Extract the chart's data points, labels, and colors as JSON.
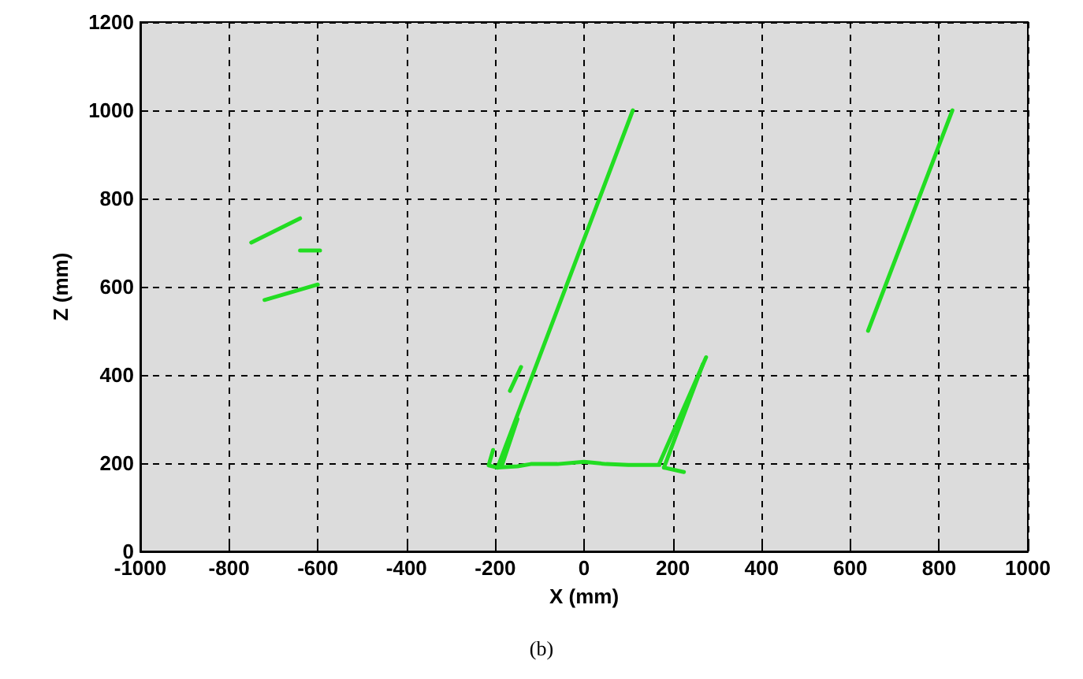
{
  "chart_data": {
    "type": "line",
    "xlabel": "X (mm)",
    "ylabel": "Z (mm)",
    "annotations": [
      "(b)"
    ],
    "xlim": [
      -1000,
      1000
    ],
    "xticks": [
      -1000,
      -800,
      -600,
      -400,
      -200,
      0,
      200,
      400,
      600,
      800,
      1000
    ],
    "ylim": [
      0,
      1200
    ],
    "yticks": [
      0,
      200,
      400,
      600,
      800,
      1000,
      1200
    ],
    "grid": true,
    "marker": "none",
    "line_style": "solid",
    "series": [
      {
        "color": "#22dd22",
        "x": [
          -195,
          110
        ],
        "values": [
          190,
          1000
        ]
      },
      {
        "color": "#22dd22",
        "x": [
          -185,
          -150
        ],
        "values": [
          195,
          300
        ]
      },
      {
        "color": "#22dd22",
        "x": [
          640,
          830
        ],
        "values": [
          500,
          1000
        ]
      },
      {
        "color": "#22dd22",
        "x": [
          -750,
          -640
        ],
        "values": [
          700,
          755
        ]
      },
      {
        "color": "#22dd22",
        "x": [
          -640,
          -595
        ],
        "values": [
          682,
          682
        ]
      },
      {
        "color": "#22dd22",
        "x": [
          -720,
          -600
        ],
        "values": [
          570,
          605
        ]
      },
      {
        "color": "#22dd22",
        "x": [
          -167,
          -142
        ],
        "values": [
          364,
          418
        ]
      },
      {
        "color": "#22dd22",
        "x": [
          -205,
          -215,
          -195,
          -150,
          -120,
          -60,
          0,
          50,
          100,
          170
        ],
        "values": [
          230,
          195,
          190,
          193,
          198,
          198,
          203,
          198,
          196,
          196
        ]
      },
      {
        "color": "#22dd22",
        "x": [
          170,
          275
        ],
        "values": [
          200,
          440
        ]
      },
      {
        "color": "#22dd22",
        "x": [
          180,
          268
        ],
        "values": [
          190,
          425
        ]
      },
      {
        "color": "#22dd22",
        "x": [
          180,
          225
        ],
        "values": [
          190,
          180
        ]
      }
    ]
  }
}
